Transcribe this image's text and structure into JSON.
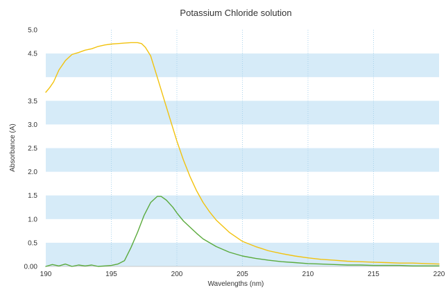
{
  "chart_data": {
    "type": "line",
    "title": "Potassium Chloride solution",
    "xlabel": "Wavelengths (nm)",
    "ylabel": "Absorbance (A)",
    "xlim": [
      190,
      220
    ],
    "ylim": [
      0,
      5
    ],
    "x_ticks": [
      "190",
      "195",
      "200",
      "205",
      "210",
      "215",
      "220"
    ],
    "y_ticks": [
      "0.00",
      "0.5",
      "1.0",
      "1.5",
      "2.0",
      "2.5",
      "3.0",
      "3.5",
      "4.5",
      "5.0"
    ],
    "grid": "alternating horizontal bands, dotted vertical gridlines",
    "band_color": "#d6ebf8",
    "series": [
      {
        "color": "#f2c20d",
        "points": [
          [
            190.0,
            3.68
          ],
          [
            190.3,
            3.78
          ],
          [
            190.6,
            3.9
          ],
          [
            191.0,
            4.15
          ],
          [
            191.5,
            4.35
          ],
          [
            192.0,
            4.48
          ],
          [
            192.5,
            4.52
          ],
          [
            193.0,
            4.57
          ],
          [
            193.5,
            4.6
          ],
          [
            194.0,
            4.65
          ],
          [
            194.5,
            4.68
          ],
          [
            195.0,
            4.7
          ],
          [
            195.5,
            4.71
          ],
          [
            196.0,
            4.72
          ],
          [
            196.5,
            4.73
          ],
          [
            197.0,
            4.73
          ],
          [
            197.3,
            4.71
          ],
          [
            197.6,
            4.63
          ],
          [
            198.0,
            4.45
          ],
          [
            198.5,
            4.0
          ],
          [
            199.0,
            3.55
          ],
          [
            199.5,
            3.1
          ],
          [
            200.0,
            2.65
          ],
          [
            200.5,
            2.25
          ],
          [
            201.0,
            1.9
          ],
          [
            201.5,
            1.6
          ],
          [
            202.0,
            1.35
          ],
          [
            202.5,
            1.15
          ],
          [
            203.0,
            0.98
          ],
          [
            204.0,
            0.72
          ],
          [
            205.0,
            0.53
          ],
          [
            206.0,
            0.42
          ],
          [
            207.0,
            0.33
          ],
          [
            208.0,
            0.27
          ],
          [
            209.0,
            0.22
          ],
          [
            210.0,
            0.18
          ],
          [
            211.0,
            0.15
          ],
          [
            212.0,
            0.13
          ],
          [
            213.0,
            0.11
          ],
          [
            214.0,
            0.1
          ],
          [
            215.0,
            0.09
          ],
          [
            216.0,
            0.08
          ],
          [
            217.0,
            0.07
          ],
          [
            218.0,
            0.07
          ],
          [
            219.0,
            0.06
          ],
          [
            220.0,
            0.05
          ]
        ]
      },
      {
        "color": "#5aaa3c",
        "points": [
          [
            190.0,
            0.0
          ],
          [
            190.5,
            0.04
          ],
          [
            191.0,
            0.01
          ],
          [
            191.5,
            0.05
          ],
          [
            192.0,
            0.0
          ],
          [
            192.5,
            0.03
          ],
          [
            193.0,
            0.01
          ],
          [
            193.5,
            0.03
          ],
          [
            194.0,
            0.0
          ],
          [
            194.5,
            0.01
          ],
          [
            195.0,
            0.02
          ],
          [
            195.5,
            0.05
          ],
          [
            196.0,
            0.12
          ],
          [
            196.5,
            0.4
          ],
          [
            197.0,
            0.72
          ],
          [
            197.5,
            1.08
          ],
          [
            198.0,
            1.35
          ],
          [
            198.5,
            1.48
          ],
          [
            198.8,
            1.48
          ],
          [
            199.2,
            1.4
          ],
          [
            199.7,
            1.25
          ],
          [
            200.0,
            1.13
          ],
          [
            200.5,
            0.96
          ],
          [
            201.0,
            0.83
          ],
          [
            201.5,
            0.7
          ],
          [
            202.0,
            0.58
          ],
          [
            203.0,
            0.42
          ],
          [
            204.0,
            0.3
          ],
          [
            205.0,
            0.22
          ],
          [
            206.0,
            0.17
          ],
          [
            207.0,
            0.13
          ],
          [
            208.0,
            0.1
          ],
          [
            209.0,
            0.08
          ],
          [
            210.0,
            0.06
          ],
          [
            211.0,
            0.05
          ],
          [
            212.0,
            0.04
          ],
          [
            213.0,
            0.03
          ],
          [
            214.0,
            0.03
          ],
          [
            215.0,
            0.02
          ],
          [
            216.0,
            0.02
          ],
          [
            217.0,
            0.02
          ],
          [
            218.0,
            0.01
          ],
          [
            219.0,
            0.01
          ],
          [
            220.0,
            0.01
          ]
        ]
      }
    ]
  }
}
